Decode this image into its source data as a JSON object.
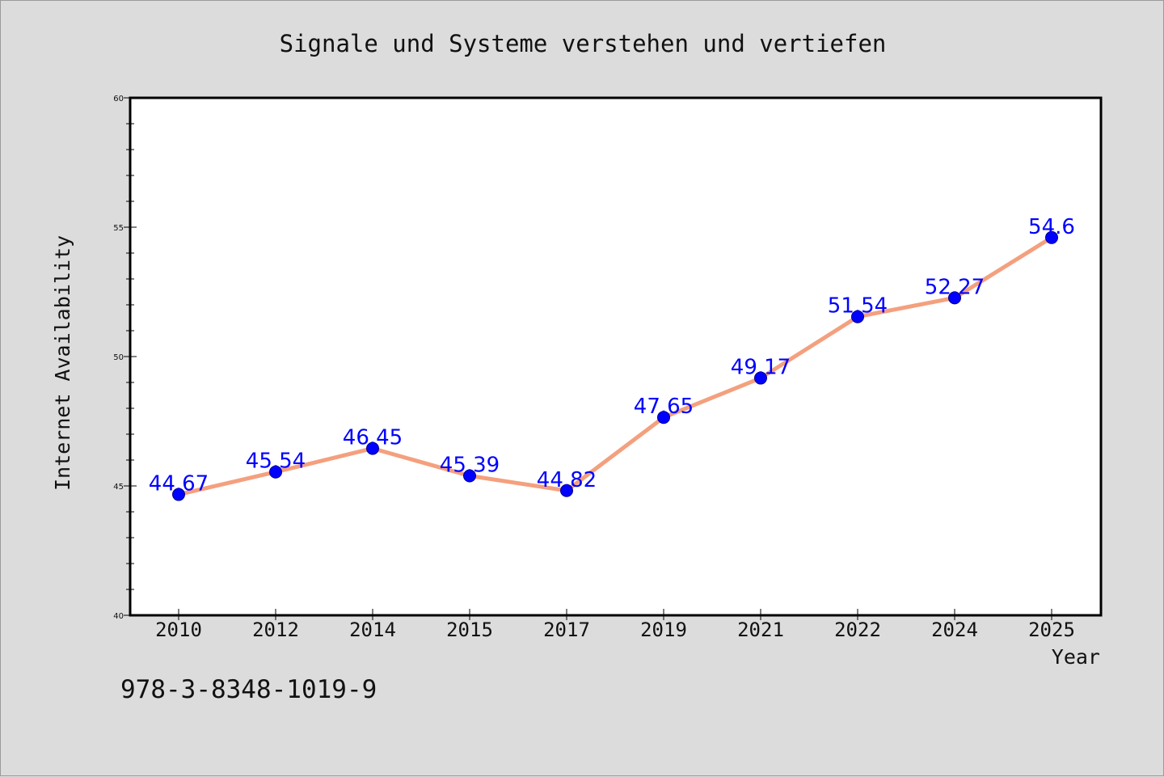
{
  "chart_data": {
    "type": "line",
    "title": "Signale und Systeme verstehen und vertiefen",
    "xlabel": "Year",
    "ylabel": "Internet Availability",
    "categories": [
      "2010",
      "2012",
      "2014",
      "2015",
      "2017",
      "2019",
      "2021",
      "2022",
      "2024",
      "2025"
    ],
    "series": [
      {
        "values": [
          44.67,
          45.54,
          46.45,
          45.39,
          44.82,
          47.65,
          49.17,
          51.54,
          52.27,
          54.6
        ],
        "data_labels": [
          "44.67",
          "45.54",
          "46.45",
          "45.39",
          "44.82",
          "47.65",
          "49.17",
          "51.54",
          "52.27",
          "54.6"
        ]
      }
    ],
    "ylim": [
      40,
      60
    ],
    "yticks": [
      "40",
      "45",
      "50",
      "55",
      "60"
    ],
    "grid": false,
    "legend": "none",
    "colors": {
      "line": "#f4a07e",
      "marker": "#0000ff",
      "label": "#0000ff",
      "background": "#dcdcdc",
      "plot_area": "#ffffff"
    }
  },
  "isbn": "978-3-8348-1019-9"
}
